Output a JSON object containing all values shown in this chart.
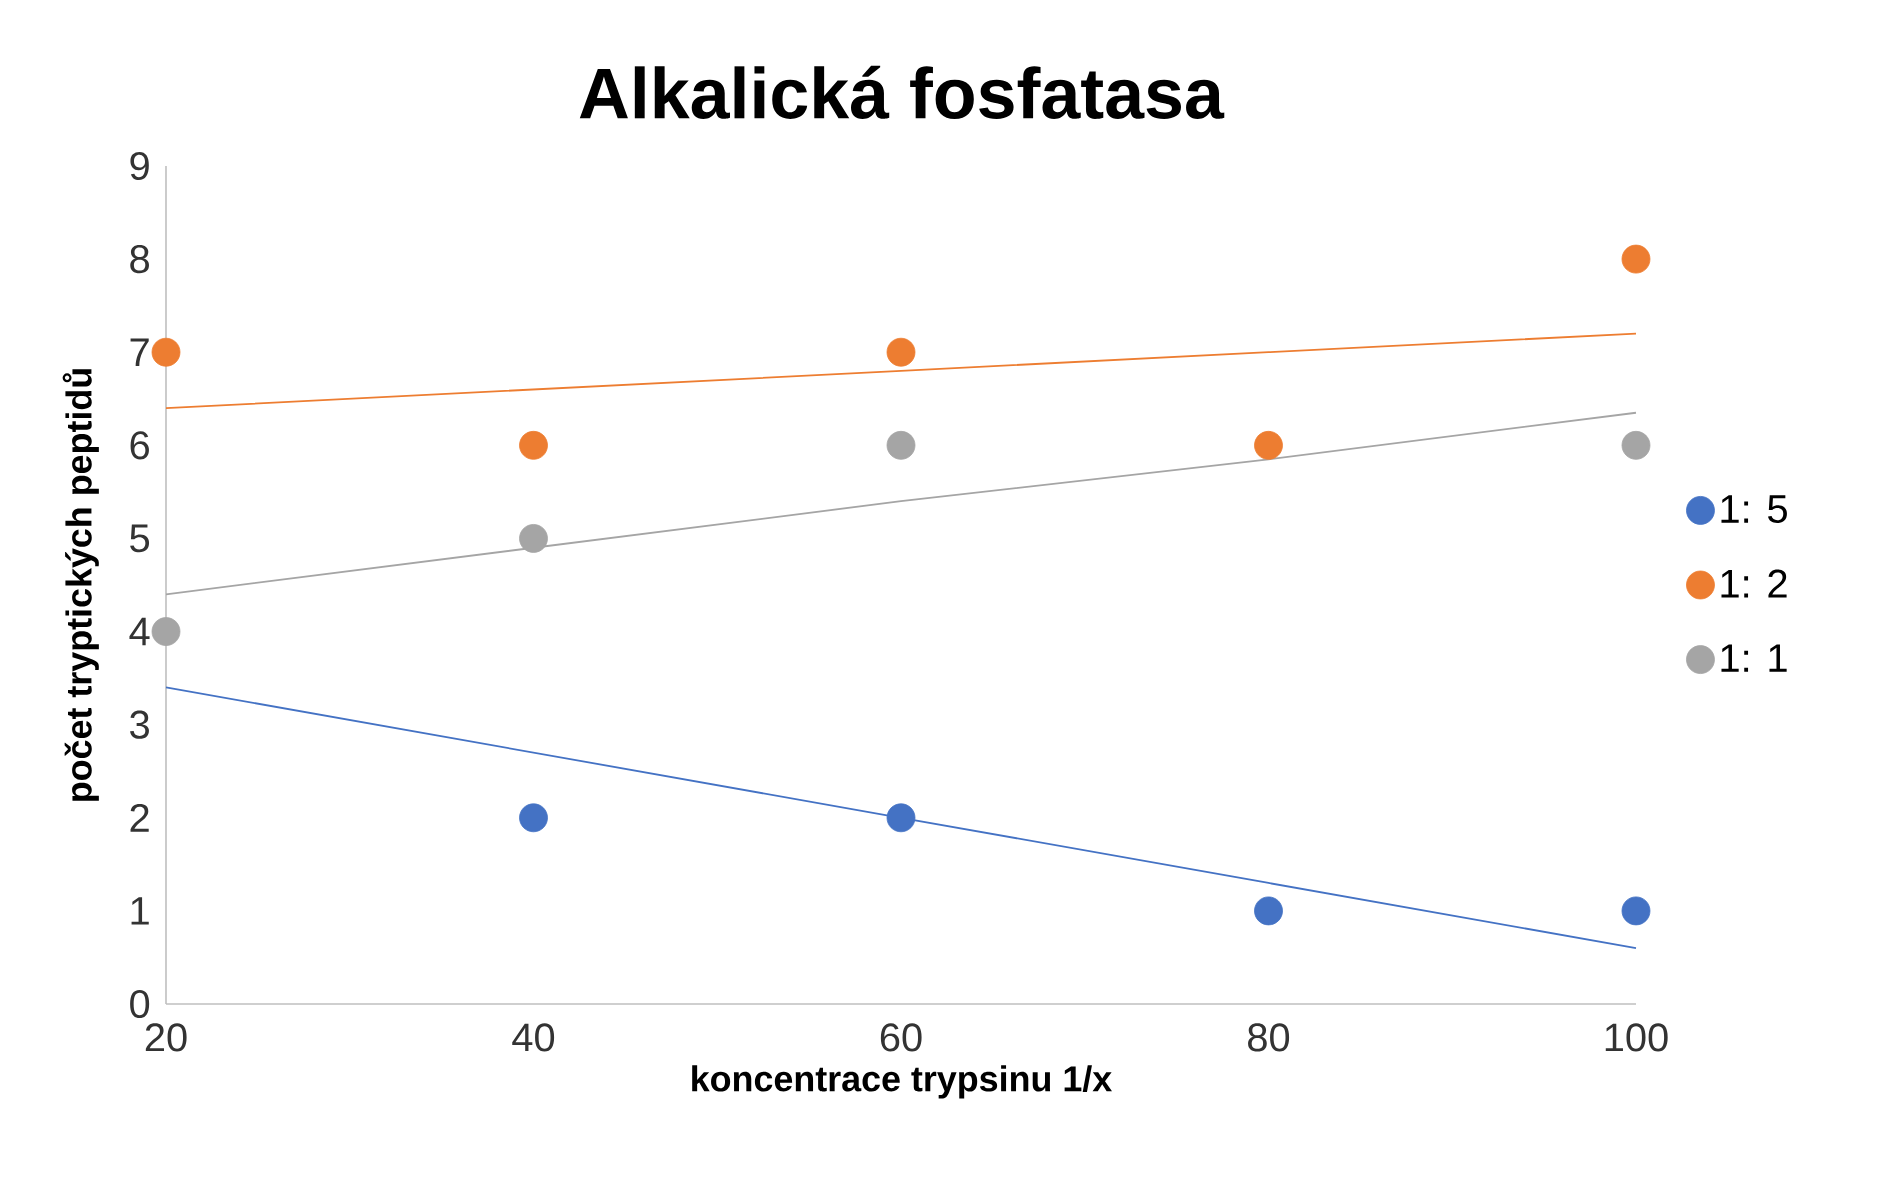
{
  "chart_data": {
    "type": "scatter",
    "title": "Alkalická fosfatasa",
    "xlabel": "koncentrace trypsinu 1/x",
    "ylabel": "počet tryptických peptidů",
    "x": [
      20,
      40,
      60,
      80,
      100
    ],
    "series": [
      {
        "name": "1: 5",
        "marker": "circle",
        "color": "#4472c4",
        "values": [
          null,
          2,
          2,
          1,
          1
        ]
      },
      {
        "name": "1: 2",
        "marker": "circle",
        "color": "#ed7d31",
        "values": [
          7,
          6,
          7,
          6,
          8
        ]
      },
      {
        "name": "1: 1",
        "marker": "circle",
        "color": "#a5a5a5",
        "values": [
          4,
          5,
          6,
          null,
          6
        ]
      },
      {
        "type": "line",
        "marker": "none",
        "color": "#4472c4",
        "values": [
          3.4,
          2.7,
          2.0,
          1.3,
          0.6
        ]
      },
      {
        "type": "line",
        "marker": "none",
        "color": "#ed7d31",
        "values": [
          6.4,
          6.6,
          6.8,
          7.0,
          7.2
        ]
      },
      {
        "type": "line",
        "marker": "none",
        "color": "#a5a5a5",
        "values": [
          4.4,
          4.9,
          5.4,
          5.85,
          6.35
        ]
      }
    ],
    "xlim": [
      20,
      100
    ],
    "xticks": [
      20,
      40,
      60,
      80,
      100
    ],
    "ylim": [
      0,
      9
    ],
    "yticks": [
      0,
      1,
      2,
      3,
      4,
      5,
      6,
      7,
      8,
      9
    ],
    "grid": false,
    "legend": "right",
    "line_style": "solid"
  }
}
